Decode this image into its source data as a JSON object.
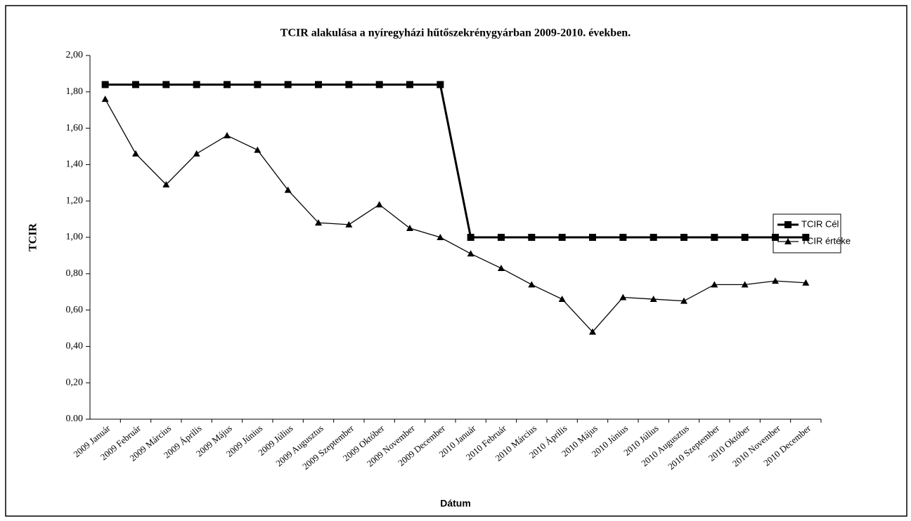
{
  "chart_data": {
    "type": "line",
    "title": "TCIR alakulása a nyíregyházi hűtőszekrénygyárban 2009-2010. években.",
    "y_label": "TCIR",
    "x_label": "Dátum",
    "categories": [
      "2009 Január",
      "2009 Február",
      "2009 Március",
      "2009 Április",
      "2009 Május",
      "2009 Június",
      "2009 Július",
      "2009 Augusztus",
      "2009 Szeptember",
      "2009 Október",
      "2009 November",
      "2009 December",
      "2010  Január",
      "2010 Február",
      "2010 Március",
      "2010 Április",
      "2010 Május",
      "2010 Június",
      "2010 Július",
      "2010 Augusztus",
      "2010 Szeptember",
      "2010 Október",
      "2010 November",
      "2010 December"
    ],
    "series": [
      {
        "name": "TCIR Cél",
        "color": "#000000",
        "marker": "square",
        "values": [
          1.84,
          1.84,
          1.84,
          1.84,
          1.84,
          1.84,
          1.84,
          1.84,
          1.84,
          1.84,
          1.84,
          1.84,
          1.0,
          1.0,
          1.0,
          1.0,
          1.0,
          1.0,
          1.0,
          1.0,
          1.0,
          1.0,
          1.0,
          1.0
        ]
      },
      {
        "name": "TCIR értéke",
        "color": "#000000",
        "marker": "triangle",
        "values": [
          1.76,
          1.46,
          1.29,
          1.46,
          1.56,
          1.48,
          1.26,
          1.08,
          1.07,
          1.18,
          1.05,
          1.0,
          0.91,
          0.83,
          0.74,
          0.66,
          0.48,
          0.67,
          0.66,
          0.65,
          0.74,
          0.74,
          0.76,
          0.75
        ]
      }
    ],
    "ylim": [
      0,
      2
    ],
    "yticks": [
      {
        "value": 0,
        "label": "0.00"
      },
      {
        "value": 0.2,
        "label": "0,20"
      },
      {
        "value": 0.4,
        "label": "0,40"
      },
      {
        "value": 0.6,
        "label": "0,60"
      },
      {
        "value": 0.8,
        "label": "0,80"
      },
      {
        "value": 1,
        "label": "1,00"
      },
      {
        "value": 1.2,
        "label": "1,20"
      },
      {
        "value": 1.4,
        "label": "1,40"
      },
      {
        "value": 1.6,
        "label": "1,60"
      },
      {
        "value": 1.8,
        "label": "1,80"
      },
      {
        "value": 2,
        "label": "2,00"
      }
    ],
    "legend": "right"
  }
}
